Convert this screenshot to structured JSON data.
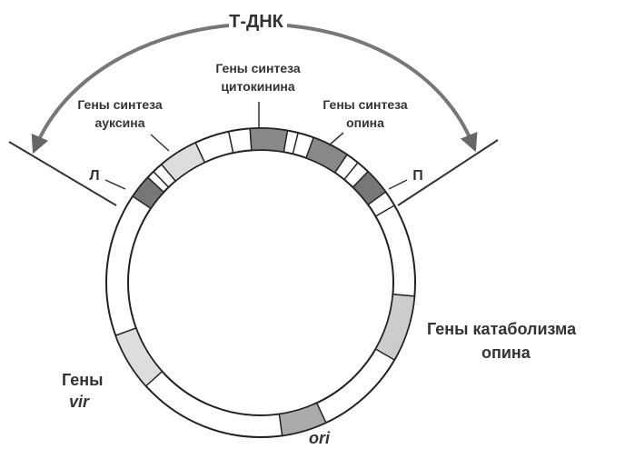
{
  "title": "Т-ДНК",
  "labels": {
    "cytokinin": [
      "Гены синтеза",
      "цитокинина"
    ],
    "auxin": [
      "Гены синтеза",
      "ауксина"
    ],
    "opine": [
      "Гены синтеза",
      "опина"
    ],
    "left_border": "Л",
    "right_border": "П",
    "catabolism": [
      "Гены катаболизма",
      "опина"
    ],
    "vir": [
      "Гены",
      "vir"
    ],
    "ori": "ori"
  }
}
